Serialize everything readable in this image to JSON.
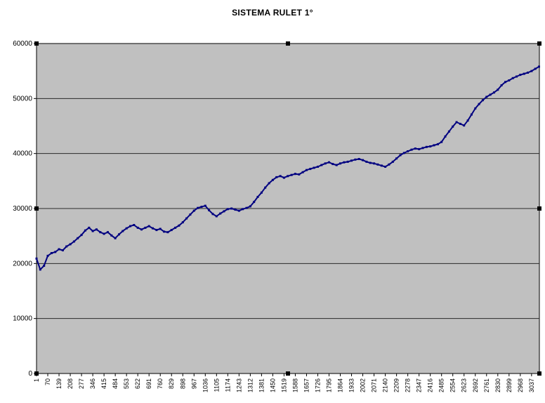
{
  "window": {
    "background": "#ffffff"
  },
  "chart_data": {
    "type": "line",
    "title": "SISTEMA RULET  1°",
    "xlabel": "",
    "ylabel": "",
    "grid": true,
    "legend": false,
    "ylim": [
      0,
      60000
    ],
    "yticks": [
      0,
      10000,
      20000,
      30000,
      40000,
      50000,
      60000
    ],
    "xlim": [
      1,
      3085
    ],
    "xtick_labels": [
      "1",
      "70",
      "139",
      "208",
      "277",
      "346",
      "415",
      "484",
      "553",
      "622",
      "691",
      "760",
      "829",
      "898",
      "967",
      "1036",
      "1105",
      "1174",
      "1243",
      "1312",
      "1381",
      "1450",
      "1519",
      "1588",
      "1657",
      "1726",
      "1795",
      "1864",
      "1933",
      "2002",
      "2071",
      "2140",
      "2209",
      "2278",
      "2347",
      "2416",
      "2485",
      "2554",
      "2623",
      "2692",
      "2761",
      "2830",
      "2899",
      "2968",
      "3037"
    ],
    "plot_bg": "#c0c0c0",
    "grid_color": "#2a2a2a",
    "axis_color": "#000000",
    "handle_color": "#000000",
    "selection_handles": true,
    "series": [
      {
        "name": "SISTEMA RULET 1°",
        "color": "#000080",
        "x": [
          1,
          24,
          47,
          70,
          93,
          116,
          139,
          162,
          185,
          208,
          231,
          254,
          277,
          300,
          323,
          346,
          369,
          392,
          415,
          438,
          461,
          484,
          507,
          530,
          553,
          576,
          599,
          622,
          645,
          668,
          691,
          714,
          737,
          760,
          783,
          806,
          829,
          852,
          875,
          898,
          921,
          944,
          967,
          990,
          1013,
          1036,
          1059,
          1082,
          1105,
          1128,
          1151,
          1174,
          1197,
          1220,
          1243,
          1266,
          1289,
          1312,
          1335,
          1358,
          1381,
          1404,
          1427,
          1450,
          1473,
          1496,
          1519,
          1542,
          1565,
          1588,
          1611,
          1634,
          1657,
          1680,
          1703,
          1726,
          1749,
          1772,
          1795,
          1818,
          1841,
          1864,
          1887,
          1910,
          1933,
          1956,
          1979,
          2002,
          2025,
          2048,
          2071,
          2094,
          2117,
          2140,
          2163,
          2186,
          2209,
          2232,
          2255,
          2278,
          2301,
          2324,
          2347,
          2370,
          2393,
          2416,
          2439,
          2462,
          2485,
          2508,
          2531,
          2554,
          2577,
          2600,
          2623,
          2646,
          2669,
          2692,
          2715,
          2738,
          2761,
          2784,
          2807,
          2830,
          2853,
          2876,
          2899,
          2922,
          2945,
          2968,
          2991,
          3014,
          3037,
          3060,
          3083
        ],
        "y": [
          20900,
          18900,
          19600,
          21400,
          21900,
          22100,
          22600,
          22400,
          23100,
          23500,
          24000,
          24600,
          25200,
          26000,
          26500,
          25900,
          26200,
          25700,
          25400,
          25700,
          25100,
          24600,
          25300,
          25900,
          26400,
          26800,
          27000,
          26500,
          26200,
          26500,
          26800,
          26400,
          26100,
          26300,
          25800,
          25700,
          26100,
          26500,
          26900,
          27500,
          28200,
          28900,
          29600,
          30100,
          30300,
          30500,
          29700,
          29000,
          28600,
          29100,
          29500,
          29900,
          30000,
          29800,
          29600,
          29900,
          30100,
          30400,
          31200,
          32100,
          32900,
          33800,
          34600,
          35200,
          35700,
          35900,
          35600,
          35900,
          36100,
          36300,
          36200,
          36600,
          37000,
          37200,
          37400,
          37600,
          37900,
          38200,
          38400,
          38100,
          37900,
          38200,
          38400,
          38500,
          38700,
          38900,
          39000,
          38800,
          38500,
          38300,
          38200,
          38000,
          37800,
          37600,
          38000,
          38500,
          39100,
          39700,
          40100,
          40400,
          40700,
          40900,
          40800,
          41000,
          41200,
          41300,
          41500,
          41700,
          42100,
          43100,
          44000,
          44900,
          45700,
          45400,
          45100,
          46000,
          47100,
          48200,
          49000,
          49700,
          50300,
          50700,
          51100,
          51600,
          52400,
          53000,
          53300,
          53700,
          54000,
          54300,
          54500,
          54700,
          55000,
          55400,
          55800
        ]
      }
    ]
  }
}
